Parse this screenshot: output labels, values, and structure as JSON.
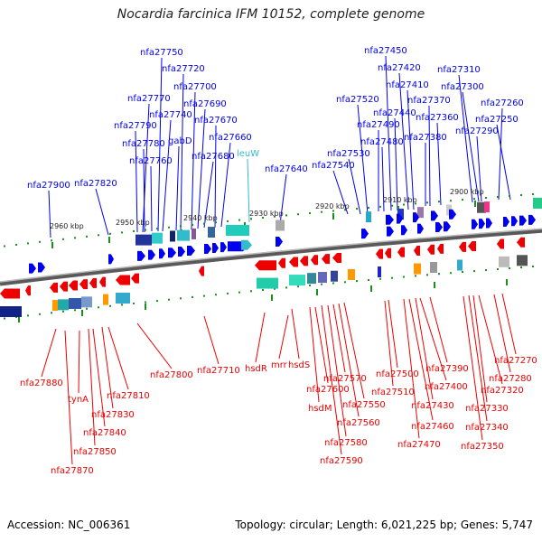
{
  "header": {
    "title": "Nocardia farcinica IFM 10152, complete genome"
  },
  "footer": {
    "accession": "Accession: NC_006361",
    "summary": "Topology: circular; Length: 6,021,225 bp; Genes: 5,747"
  },
  "colors": {
    "forward": "#0000ee",
    "reverse": "#ee0000",
    "rna": "#33bbcc",
    "backbone": "#888888",
    "tick_mark": "#118811"
  },
  "ticks": [
    "2960 kbp",
    "2950 kbp",
    "2940 kbp",
    "2930 kbp",
    "2920 kbp",
    "2910 kbp",
    "2900 kbp"
  ],
  "forward_labels": [
    "nfa27900",
    "nfa27820",
    "nfa27790",
    "nfa27780",
    "nfa27770",
    "nfa27760",
    "nfa27750",
    "nfa27740",
    "gabD",
    "nfa27720",
    "nfa27700",
    "nfa27690",
    "nfa27680",
    "nfa27670",
    "nfa27660",
    "leuW",
    "nfa27640",
    "nfa27540",
    "nfa27530",
    "nfa27520",
    "nfa27490",
    "nfa27480",
    "nfa27450",
    "nfa27440",
    "nfa27420",
    "nfa27410",
    "nfa27380",
    "nfa27370",
    "nfa27360",
    "nfa27310",
    "nfa27300",
    "nfa27290",
    "nfa27260",
    "nfa27250"
  ],
  "reverse_labels": [
    "nfa27880",
    "tynA",
    "nfa27870",
    "nfa27850",
    "nfa27840",
    "nfa27830",
    "nfa27810",
    "nfa27800",
    "nfa27710",
    "hsdR",
    "mrr",
    "hsdS",
    "hsdM",
    "nfa27600",
    "nfa27590",
    "nfa27580",
    "nfa27570",
    "nfa27560",
    "nfa27550",
    "nfa27510",
    "nfa27500",
    "nfa27470",
    "nfa27460",
    "nfa27430",
    "nfa27400",
    "nfa27390",
    "nfa27350",
    "nfa27340",
    "nfa27330",
    "nfa27320",
    "nfa27280",
    "nfa27270"
  ]
}
